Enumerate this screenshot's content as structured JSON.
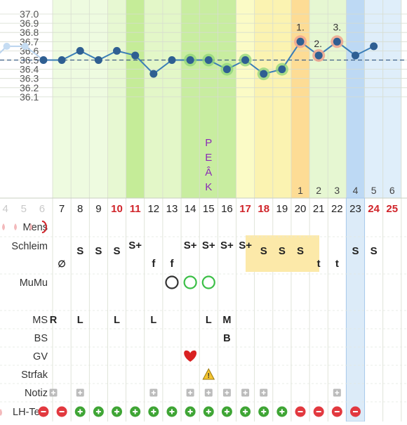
{
  "chart_data": {
    "type": "line",
    "y_ticks": [
      "37.0",
      "36.9",
      "36.8",
      "36.7",
      "36.6",
      "36.5",
      "36.4",
      "36.3",
      "36.2",
      "36.1"
    ],
    "ylim": [
      36.0,
      37.05
    ],
    "coverline": 36.5,
    "peak_label": [
      "P",
      "E",
      "Â",
      "K"
    ],
    "days": [
      {
        "cd": 4,
        "red": false
      },
      {
        "cd": 5,
        "red": false
      },
      {
        "cd": 6,
        "red": false
      },
      {
        "cd": 7,
        "red": false
      },
      {
        "cd": 8,
        "red": false
      },
      {
        "cd": 9,
        "red": false
      },
      {
        "cd": 10,
        "red": true
      },
      {
        "cd": 11,
        "red": true
      },
      {
        "cd": 12,
        "red": false
      },
      {
        "cd": 13,
        "red": false
      },
      {
        "cd": 14,
        "red": false
      },
      {
        "cd": 15,
        "red": false
      },
      {
        "cd": 16,
        "red": false
      },
      {
        "cd": 17,
        "red": true
      },
      {
        "cd": 18,
        "red": true
      },
      {
        "cd": 19,
        "red": false
      },
      {
        "cd": 20,
        "red": false
      },
      {
        "cd": 21,
        "red": false
      },
      {
        "cd": 22,
        "red": false
      },
      {
        "cd": 23,
        "red": false
      },
      {
        "cd": 24,
        "red": true
      },
      {
        "cd": 25,
        "red": true
      }
    ],
    "post_ov_days": [
      {
        "cd": 20,
        "label": "1"
      },
      {
        "cd": 21,
        "label": "2"
      },
      {
        "cd": 22,
        "label": "3"
      },
      {
        "cd": 23,
        "label": "4"
      },
      {
        "cd": 24,
        "label": "5"
      },
      {
        "cd": 25,
        "label": "6"
      }
    ],
    "temps": [
      {
        "cd": 3,
        "t": 36.55,
        "faded": true
      },
      {
        "cd": 4,
        "t": 36.65,
        "faded": true
      },
      {
        "cd": 5,
        "t": 36.65,
        "faded": true
      },
      {
        "cd": 6,
        "t": 36.5
      },
      {
        "cd": 7,
        "t": 36.5
      },
      {
        "cd": 8,
        "t": 36.6
      },
      {
        "cd": 9,
        "t": 36.5
      },
      {
        "cd": 10,
        "t": 36.6
      },
      {
        "cd": 11,
        "t": 36.55
      },
      {
        "cd": 12,
        "t": 36.35
      },
      {
        "cd": 13,
        "t": 36.5
      },
      {
        "cd": 14,
        "t": 36.5,
        "halo": "green"
      },
      {
        "cd": 15,
        "t": 36.5,
        "halo": "green"
      },
      {
        "cd": 16,
        "t": 36.4,
        "halo": "green"
      },
      {
        "cd": 17,
        "t": 36.5,
        "halo": "green"
      },
      {
        "cd": 18,
        "t": 36.35,
        "halo": "green"
      },
      {
        "cd": 19,
        "t": 36.4,
        "halo": "green"
      },
      {
        "cd": 20,
        "t": 36.7,
        "halo": "red",
        "label": "1."
      },
      {
        "cd": 21,
        "t": 36.55,
        "halo": "red",
        "label": "2."
      },
      {
        "cd": 22,
        "t": 36.7,
        "halo": "red",
        "label": "3."
      },
      {
        "cd": 23,
        "t": 36.55
      },
      {
        "cd": 24,
        "t": 36.65
      }
    ],
    "bands": [
      {
        "from": 3,
        "to": 6,
        "color": "#ffffff"
      },
      {
        "from": 6,
        "to": 10,
        "color": "#eefbe0"
      },
      {
        "from": 10,
        "to": 11,
        "color": "#e7f8d2"
      },
      {
        "from": 11,
        "to": 12,
        "color": "#c5ec98"
      },
      {
        "from": 12,
        "to": 14,
        "color": "#e3f7c8"
      },
      {
        "from": 14,
        "to": 17,
        "color": "#c8eda0"
      },
      {
        "from": 17,
        "to": 18,
        "color": "#fbfbc6"
      },
      {
        "from": 18,
        "to": 20,
        "color": "#fbf3b1"
      },
      {
        "from": 20,
        "to": 21,
        "color": "#fddc95"
      },
      {
        "from": 21,
        "to": 23,
        "color": "#e6f7d2"
      },
      {
        "from": 23,
        "to": 24,
        "color": "#bdd9f4"
      },
      {
        "from": 24,
        "to": 26,
        "color": "#dfeefa"
      }
    ],
    "row_labels": [
      "Mens",
      "Schleim",
      "MuMu",
      "MS",
      "BS",
      "GV",
      "Strfak",
      "Notiz",
      "LH-Test"
    ],
    "schleim": [
      {
        "cd": 7,
        "v": "∅"
      },
      {
        "cd": 8,
        "v": "S"
      },
      {
        "cd": 9,
        "v": "S"
      },
      {
        "cd": 10,
        "v": "S"
      },
      {
        "cd": 11,
        "v": "S+"
      },
      {
        "cd": 12,
        "v": "f"
      },
      {
        "cd": 13,
        "v": "f"
      },
      {
        "cd": 14,
        "v": "S+"
      },
      {
        "cd": 15,
        "v": "S+"
      },
      {
        "cd": 16,
        "v": "S+"
      },
      {
        "cd": 17,
        "v": "S+"
      },
      {
        "cd": 18,
        "v": "S"
      },
      {
        "cd": 19,
        "v": "S"
      },
      {
        "cd": 20,
        "v": "S"
      },
      {
        "cd": 21,
        "v": "t"
      },
      {
        "cd": 22,
        "v": "t"
      },
      {
        "cd": 23,
        "v": "S"
      },
      {
        "cd": 24,
        "v": "S"
      }
    ],
    "mumu": [
      {
        "cd": 13,
        "color": "#333333"
      },
      {
        "cd": 14,
        "color": "#3bbf46"
      },
      {
        "cd": 15,
        "color": "#3bbf46"
      }
    ],
    "ms": [
      {
        "cd": 6,
        "v": "R"
      },
      {
        "cd": 8,
        "v": "L"
      },
      {
        "cd": 10,
        "v": "L"
      },
      {
        "cd": 12,
        "v": "L"
      },
      {
        "cd": 15,
        "v": "L"
      },
      {
        "cd": 16,
        "v": "M"
      }
    ],
    "bs": [
      {
        "cd": 16,
        "v": "B"
      }
    ],
    "gv": [
      14
    ],
    "strfak": [
      15
    ],
    "notiz": [
      6,
      8,
      12,
      14,
      15,
      16,
      17,
      18,
      22
    ],
    "lh": [
      {
        "cd": 6,
        "v": "-"
      },
      {
        "cd": 7,
        "v": "-"
      },
      {
        "cd": 8,
        "v": "+"
      },
      {
        "cd": 9,
        "v": "+"
      },
      {
        "cd": 10,
        "v": "+"
      },
      {
        "cd": 11,
        "v": "+"
      },
      {
        "cd": 12,
        "v": "+"
      },
      {
        "cd": 13,
        "v": "+"
      },
      {
        "cd": 14,
        "v": "+"
      },
      {
        "cd": 15,
        "v": "+"
      },
      {
        "cd": 16,
        "v": "+"
      },
      {
        "cd": 17,
        "v": "+"
      },
      {
        "cd": 18,
        "v": "+"
      },
      {
        "cd": 19,
        "v": "+"
      },
      {
        "cd": 20,
        "v": "-"
      },
      {
        "cd": 21,
        "v": "-"
      },
      {
        "cd": 22,
        "v": "-"
      },
      {
        "cd": 23,
        "v": "-"
      }
    ],
    "colors": {
      "line": "#3a7db7",
      "point": "#2f5f92",
      "red_text": "#d0242a",
      "lh_plus": "#3fa535",
      "lh_minus": "#e2393f",
      "peak": "#8b2bb5",
      "coverline": "#3f5f86"
    }
  }
}
